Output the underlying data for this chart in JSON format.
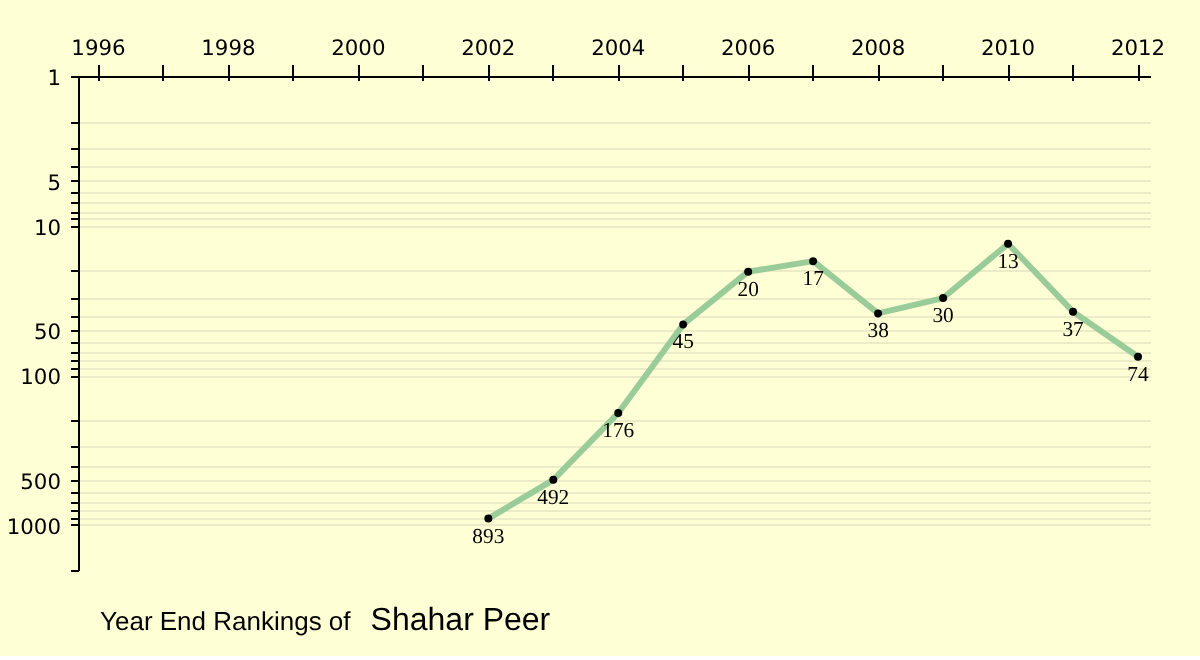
{
  "chart_data": {
    "type": "line",
    "title": "Year End Rankings of",
    "subtitle": "Shahar Peer",
    "x": [
      2002,
      2003,
      2004,
      2005,
      2006,
      2007,
      2008,
      2009,
      2010,
      2011,
      2012
    ],
    "series": [
      {
        "color": "#99cc99",
        "values": [
          893,
          492,
          176,
          45,
          20,
          17,
          38,
          30,
          13,
          37,
          74
        ]
      }
    ],
    "data_labels": true,
    "marker": "circle",
    "log": "y",
    "grid": "y",
    "xlim": [
      1995.7,
      2012.2
    ],
    "xticks": [
      1996,
      {
        "value": 1997,
        "label": null
      },
      1998,
      {
        "value": 1999,
        "label": null
      },
      2000,
      {
        "value": 2001,
        "label": null
      },
      2002,
      {
        "value": 2003,
        "label": null
      },
      2004,
      {
        "value": 2005,
        "label": null
      },
      2006,
      {
        "value": 2007,
        "label": null
      },
      2008,
      {
        "value": 2009,
        "label": null
      },
      2010,
      {
        "value": 2011,
        "label": null
      },
      2012
    ],
    "ylim": [
      2000,
      1
    ],
    "yticks": [
      1,
      {
        "value": 2,
        "label": null
      },
      {
        "value": 3,
        "label": null
      },
      {
        "value": 4,
        "label": null
      },
      5,
      {
        "value": 6,
        "label": null
      },
      {
        "value": 7,
        "label": null
      },
      {
        "value": 8,
        "label": null
      },
      {
        "value": 9,
        "label": null
      },
      10,
      {
        "value": 20,
        "label": null
      },
      {
        "value": 30,
        "label": null
      },
      {
        "value": 40,
        "label": null
      },
      50,
      {
        "value": 60,
        "label": null
      },
      {
        "value": 70,
        "label": null
      },
      {
        "value": 80,
        "label": null
      },
      {
        "value": 90,
        "label": null
      },
      100,
      {
        "value": 200,
        "label": null
      },
      {
        "value": 300,
        "label": null
      },
      {
        "value": 400,
        "label": null
      },
      500,
      {
        "value": 600,
        "label": null
      },
      {
        "value": 700,
        "label": null
      },
      {
        "value": 800,
        "label": null
      },
      {
        "value": 900,
        "label": null
      },
      1000,
      {
        "value": 2000,
        "label": null
      }
    ]
  }
}
